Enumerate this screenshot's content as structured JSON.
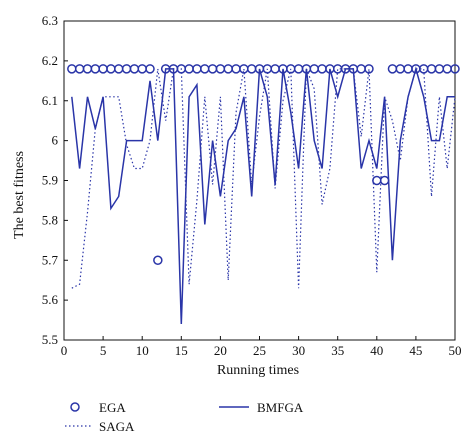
{
  "chart_data": {
    "type": "line",
    "xlabel": "Running times",
    "ylabel": "The best fitness",
    "xlim": [
      0,
      50
    ],
    "ylim": [
      5.5,
      6.3
    ],
    "xticks": [
      0,
      5,
      10,
      15,
      20,
      25,
      30,
      35,
      40,
      45,
      50
    ],
    "yticks": [
      5.5,
      5.6,
      5.7,
      5.8,
      5.9,
      6,
      6.1,
      6.2,
      6.3
    ],
    "ytick_labels": [
      "5.5",
      "5.6",
      "5.7",
      "5.8",
      "5.9",
      "6",
      "6.1",
      "6.2",
      "6.3"
    ],
    "grid": false,
    "legend_position": "bottom",
    "x": [
      1,
      2,
      3,
      4,
      5,
      6,
      7,
      8,
      9,
      10,
      11,
      12,
      13,
      14,
      15,
      16,
      17,
      18,
      19,
      20,
      21,
      22,
      23,
      24,
      25,
      26,
      27,
      28,
      29,
      30,
      31,
      32,
      33,
      34,
      35,
      36,
      37,
      38,
      39,
      40,
      41,
      42,
      43,
      44,
      45,
      46,
      47,
      48,
      49,
      50
    ],
    "series": [
      {
        "name": "EGA",
        "style": "markers",
        "color": "#2a35a8",
        "values": [
          6.18,
          6.18,
          6.18,
          6.18,
          6.18,
          6.18,
          6.18,
          6.18,
          6.18,
          6.18,
          6.18,
          5.7,
          6.18,
          6.18,
          6.18,
          6.18,
          6.18,
          6.18,
          6.18,
          6.18,
          6.18,
          6.18,
          6.18,
          6.18,
          6.18,
          6.18,
          6.18,
          6.18,
          6.18,
          6.18,
          6.18,
          6.18,
          6.18,
          6.18,
          6.18,
          6.18,
          6.18,
          6.18,
          6.18,
          5.9,
          5.9,
          6.18,
          6.18,
          6.18,
          6.18,
          6.18,
          6.18,
          6.18,
          6.18,
          6.18
        ]
      },
      {
        "name": "SAGA",
        "style": "dotted",
        "color": "#2a35a8",
        "values": [
          5.63,
          5.64,
          5.82,
          6.03,
          6.11,
          6.11,
          6.11,
          5.99,
          5.93,
          5.93,
          6.0,
          6.18,
          6.05,
          6.18,
          6.18,
          5.64,
          5.85,
          6.11,
          5.89,
          6.11,
          5.65,
          6.07,
          6.18,
          5.89,
          6.06,
          6.18,
          5.88,
          6.1,
          6.18,
          5.63,
          6.18,
          6.13,
          5.84,
          5.93,
          6.18,
          6.18,
          6.18,
          6.01,
          6.18,
          5.67,
          6.11,
          6.05,
          5.95,
          6.11,
          6.18,
          6.18,
          5.86,
          6.11,
          5.93,
          6.11
        ]
      },
      {
        "name": "BMFGA",
        "style": "solid",
        "color": "#2a35a8",
        "values": [
          6.11,
          5.93,
          6.11,
          6.03,
          6.11,
          5.83,
          5.86,
          6.0,
          6.0,
          6.0,
          6.15,
          6.0,
          6.18,
          6.18,
          5.54,
          6.11,
          6.14,
          5.79,
          6.0,
          5.86,
          6.0,
          6.03,
          6.11,
          5.86,
          6.18,
          6.11,
          5.89,
          6.18,
          6.07,
          5.93,
          6.18,
          6.0,
          5.93,
          6.18,
          6.11,
          6.18,
          6.18,
          5.93,
          6.0,
          5.93,
          6.11,
          5.7,
          6.0,
          6.11,
          6.18,
          6.11,
          6.0,
          6.0,
          6.11,
          6.11
        ]
      }
    ]
  }
}
